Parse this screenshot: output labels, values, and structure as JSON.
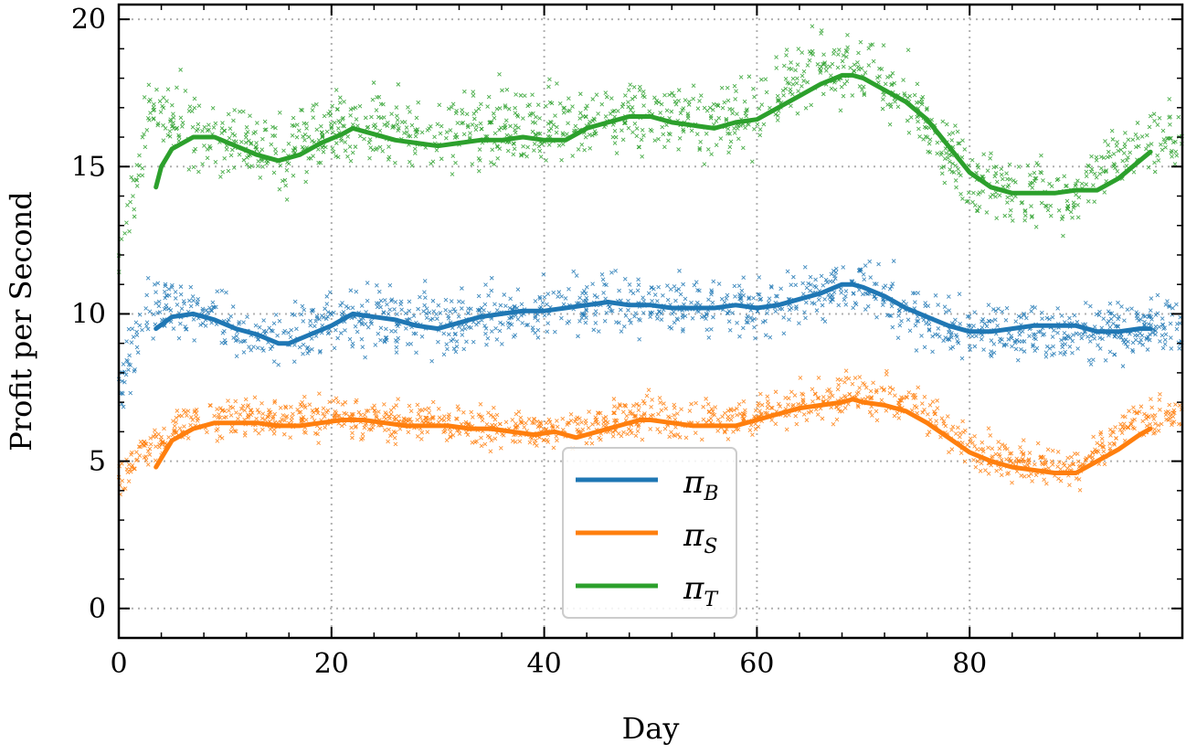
{
  "chart_data": {
    "type": "line",
    "title": "",
    "xlabel": "Day",
    "ylabel": "Profit per Second",
    "xlim": [
      0,
      100
    ],
    "ylim": [
      -1,
      20.5
    ],
    "xticks": [
      0,
      20,
      40,
      60,
      80
    ],
    "yticks": [
      0,
      5,
      10,
      15,
      20
    ],
    "grid": true,
    "grid_style": "dotted",
    "legend_position": "lower-center",
    "series": [
      {
        "name": "π_B",
        "label_main": "π",
        "label_sub": "B",
        "color": "#1f77b4",
        "smoothed": {
          "x": [
            3.5,
            5,
            7,
            9,
            11,
            13,
            15,
            16,
            18,
            20,
            22,
            24,
            26,
            28,
            30,
            32,
            34,
            36,
            38,
            40,
            42,
            44,
            46,
            48,
            50,
            52,
            54,
            56,
            58,
            60,
            62,
            64,
            66,
            68,
            69,
            70,
            72,
            74,
            76,
            78,
            80,
            82,
            84,
            86,
            88,
            90,
            92,
            94,
            96,
            97
          ],
          "y": [
            9.5,
            9.9,
            10.0,
            9.8,
            9.5,
            9.3,
            9.0,
            9.0,
            9.3,
            9.6,
            10.0,
            9.9,
            9.8,
            9.6,
            9.5,
            9.7,
            9.9,
            10.0,
            10.1,
            10.1,
            10.2,
            10.3,
            10.4,
            10.3,
            10.3,
            10.2,
            10.2,
            10.2,
            10.3,
            10.2,
            10.3,
            10.5,
            10.7,
            11.0,
            11.0,
            10.9,
            10.6,
            10.2,
            9.9,
            9.6,
            9.4,
            9.4,
            9.5,
            9.6,
            9.6,
            9.6,
            9.4,
            9.4,
            9.5,
            9.5
          ]
        },
        "scatter_center": [
          [
            0,
            7.5
          ],
          [
            3,
            10.2
          ],
          [
            6,
            10.3
          ],
          [
            10,
            9.7
          ],
          [
            15,
            8.9
          ],
          [
            20,
            9.7
          ],
          [
            25,
            9.9
          ],
          [
            30,
            9.6
          ],
          [
            35,
            9.9
          ],
          [
            40,
            10.1
          ],
          [
            45,
            10.3
          ],
          [
            50,
            10.3
          ],
          [
            55,
            10.2
          ],
          [
            60,
            10.2
          ],
          [
            65,
            10.6
          ],
          [
            70,
            11.0
          ],
          [
            75,
            10.0
          ],
          [
            80,
            9.4
          ],
          [
            85,
            9.5
          ],
          [
            90,
            9.4
          ],
          [
            95,
            9.5
          ],
          [
            100,
            9.5
          ]
        ],
        "scatter_spread": 0.9
      },
      {
        "name": "π_S",
        "label_main": "π",
        "label_sub": "S",
        "color": "#ff7f0e",
        "smoothed": {
          "x": [
            3.5,
            5,
            7,
            9,
            11,
            13,
            15,
            17,
            19,
            21,
            23,
            25,
            27,
            29,
            31,
            33,
            35,
            37,
            39,
            41,
            43,
            45,
            47,
            49,
            50,
            52,
            54,
            56,
            58,
            60,
            62,
            64,
            66,
            68,
            69,
            70,
            72,
            74,
            76,
            78,
            80,
            82,
            84,
            86,
            88,
            90,
            92,
            94,
            96,
            97
          ],
          "y": [
            4.8,
            5.7,
            6.1,
            6.3,
            6.3,
            6.3,
            6.2,
            6.2,
            6.3,
            6.4,
            6.4,
            6.3,
            6.2,
            6.2,
            6.2,
            6.1,
            6.1,
            6.0,
            5.9,
            6.0,
            5.8,
            6.0,
            6.2,
            6.4,
            6.4,
            6.3,
            6.2,
            6.2,
            6.2,
            6.4,
            6.6,
            6.8,
            6.9,
            7.0,
            7.1,
            7.0,
            6.9,
            6.7,
            6.3,
            5.8,
            5.3,
            5.0,
            4.8,
            4.7,
            4.6,
            4.6,
            5.0,
            5.4,
            5.9,
            6.1
          ]
        },
        "scatter_center": [
          [
            0,
            4.5
          ],
          [
            3,
            5.5
          ],
          [
            6,
            6.2
          ],
          [
            10,
            6.5
          ],
          [
            15,
            6.4
          ],
          [
            20,
            6.5
          ],
          [
            25,
            6.4
          ],
          [
            30,
            6.3
          ],
          [
            35,
            6.2
          ],
          [
            40,
            6.1
          ],
          [
            45,
            6.2
          ],
          [
            50,
            6.5
          ],
          [
            55,
            6.4
          ],
          [
            60,
            6.6
          ],
          [
            65,
            7.0
          ],
          [
            70,
            7.2
          ],
          [
            75,
            7.0
          ],
          [
            80,
            5.4
          ],
          [
            85,
            4.9
          ],
          [
            90,
            4.7
          ],
          [
            95,
            6.4
          ],
          [
            100,
            6.6
          ]
        ],
        "scatter_spread": 0.6
      },
      {
        "name": "π_T",
        "label_main": "π",
        "label_sub": "T",
        "color": "#2ca02c",
        "smoothed": {
          "x": [
            3.5,
            4,
            5,
            7,
            9,
            11,
            13,
            15,
            17,
            19,
            21,
            22,
            24,
            26,
            28,
            30,
            32,
            34,
            36,
            38,
            40,
            42,
            44,
            46,
            48,
            50,
            52,
            54,
            56,
            58,
            60,
            62,
            64,
            66,
            68,
            69,
            70,
            72,
            74,
            76,
            78,
            80,
            82,
            84,
            86,
            88,
            90,
            92,
            94,
            96,
            97
          ],
          "y": [
            14.3,
            15.0,
            15.6,
            16.0,
            16.0,
            15.7,
            15.4,
            15.2,
            15.4,
            15.8,
            16.1,
            16.3,
            16.1,
            15.9,
            15.8,
            15.7,
            15.8,
            15.9,
            15.9,
            16.0,
            15.9,
            15.9,
            16.3,
            16.5,
            16.7,
            16.7,
            16.5,
            16.4,
            16.3,
            16.5,
            16.6,
            17.0,
            17.4,
            17.8,
            18.1,
            18.1,
            18.0,
            17.6,
            17.2,
            16.6,
            15.7,
            14.8,
            14.3,
            14.1,
            14.1,
            14.1,
            14.2,
            14.2,
            14.6,
            15.2,
            15.5
          ]
        },
        "scatter_center": [
          [
            0,
            12.0
          ],
          [
            3,
            16.8
          ],
          [
            6,
            16.5
          ],
          [
            10,
            15.8
          ],
          [
            15,
            15.4
          ],
          [
            20,
            16.3
          ],
          [
            25,
            16.4
          ],
          [
            30,
            16.0
          ],
          [
            35,
            16.3
          ],
          [
            40,
            16.5
          ],
          [
            45,
            16.6
          ],
          [
            50,
            16.8
          ],
          [
            55,
            16.6
          ],
          [
            60,
            16.8
          ],
          [
            65,
            18.4
          ],
          [
            70,
            18.3
          ],
          [
            75,
            16.9
          ],
          [
            80,
            14.5
          ],
          [
            85,
            14.2
          ],
          [
            90,
            14.0
          ],
          [
            95,
            15.7
          ],
          [
            100,
            16.0
          ]
        ],
        "scatter_spread": 1.1
      }
    ]
  }
}
